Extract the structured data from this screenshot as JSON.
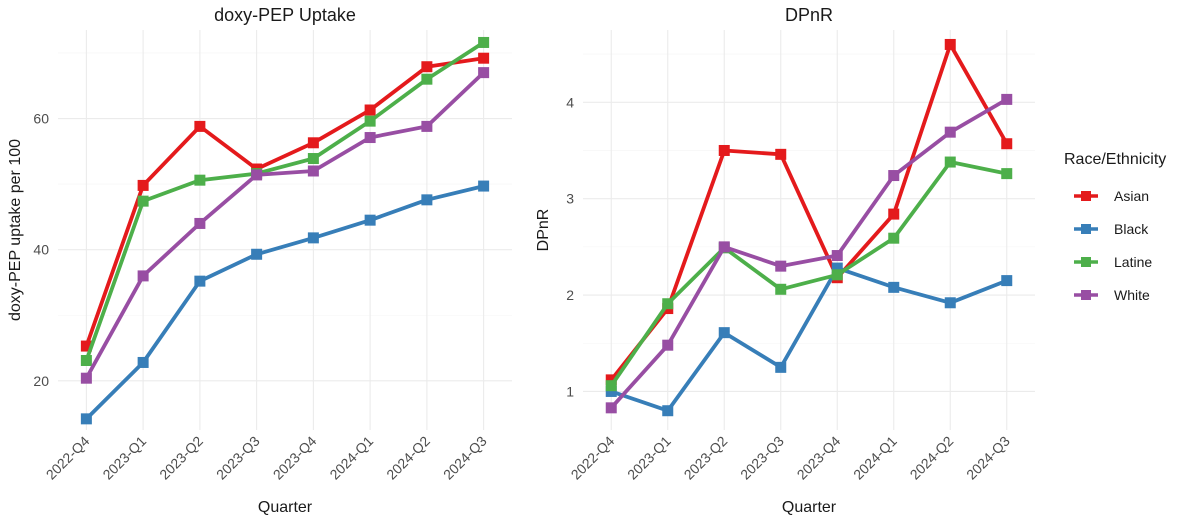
{
  "chart_data": [
    {
      "type": "line",
      "title": "doxy-PEP Uptake",
      "xlabel": "Quarter",
      "ylabel": "doxy-PEP uptake per 100",
      "categories": [
        "2022-Q4",
        "2023-Q1",
        "2023-Q2",
        "2023-Q3",
        "2023-Q4",
        "2024-Q1",
        "2024-Q2",
        "2024-Q3"
      ],
      "ylim": [
        12.5,
        73.5
      ],
      "yticks": [
        20,
        40,
        60
      ],
      "grid": true,
      "series": [
        {
          "name": "Asian",
          "color": "#e41a1c",
          "values": [
            25.3,
            49.8,
            58.8,
            52.3,
            56.3,
            61.3,
            67.9,
            69.2
          ]
        },
        {
          "name": "Black",
          "color": "#377eb8",
          "values": [
            14.2,
            22.8,
            35.2,
            39.3,
            41.8,
            44.5,
            47.6,
            49.7
          ]
        },
        {
          "name": "Latine",
          "color": "#4daf4a",
          "values": [
            23.1,
            47.4,
            50.6,
            51.6,
            53.9,
            59.6,
            66.0,
            71.6
          ]
        },
        {
          "name": "White",
          "color": "#984ea3",
          "values": [
            20.4,
            36.0,
            44.0,
            51.4,
            52.0,
            57.1,
            58.8,
            67.0
          ]
        }
      ]
    },
    {
      "type": "line",
      "title": "DPnR",
      "xlabel": "Quarter",
      "ylabel": "DPnR",
      "categories": [
        "2022-Q4",
        "2023-Q1",
        "2023-Q2",
        "2023-Q3",
        "2023-Q4",
        "2024-Q1",
        "2024-Q2",
        "2024-Q3"
      ],
      "ylim": [
        0.6,
        4.75
      ],
      "yticks": [
        1,
        2,
        3,
        4
      ],
      "grid": true,
      "series": [
        {
          "name": "Asian",
          "color": "#e41a1c",
          "values": [
            1.12,
            1.86,
            3.5,
            3.46,
            2.18,
            2.84,
            4.6,
            3.57
          ]
        },
        {
          "name": "Black",
          "color": "#377eb8",
          "values": [
            1.0,
            0.8,
            1.61,
            1.25,
            2.28,
            2.08,
            1.92,
            2.15
          ]
        },
        {
          "name": "Latine",
          "color": "#4daf4a",
          "values": [
            1.06,
            1.91,
            2.49,
            2.06,
            2.21,
            2.59,
            3.38,
            3.26
          ]
        },
        {
          "name": "White",
          "color": "#984ea3",
          "values": [
            0.83,
            1.48,
            2.5,
            2.3,
            2.41,
            3.24,
            3.69,
            4.03
          ]
        }
      ]
    }
  ],
  "legend": {
    "title": "Race/Ethnicity",
    "position": "right",
    "items": [
      {
        "label": "Asian",
        "color": "#e41a1c"
      },
      {
        "label": "Black",
        "color": "#377eb8"
      },
      {
        "label": "Latine",
        "color": "#4daf4a"
      },
      {
        "label": "White",
        "color": "#984ea3"
      }
    ]
  }
}
